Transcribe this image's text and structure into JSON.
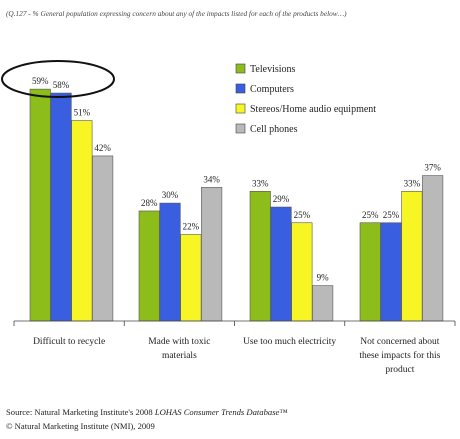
{
  "chart_data": {
    "type": "bar",
    "title": "(Q.127 - % General population expressing concern about any of the impacts listed for each of the products below…)",
    "categories": [
      [
        "Difficult to recycle"
      ],
      [
        "Made with toxic",
        "materials"
      ],
      [
        "Use too much electricity"
      ],
      [
        "Not concerned about",
        "these impacts for this",
        "product"
      ]
    ],
    "series": [
      {
        "name": "Televisions",
        "color": "#8cbd1a",
        "values": [
          59,
          28,
          33,
          25
        ]
      },
      {
        "name": "Computers",
        "color": "#3a5ee0",
        "values": [
          58,
          30,
          29,
          25
        ]
      },
      {
        "name": "Stereos/Home audio equipment",
        "color": "#f8f524",
        "values": [
          51,
          22,
          25,
          33
        ]
      },
      {
        "name": "Cell phones",
        "color": "#b9b9b9",
        "values": [
          42,
          34,
          9,
          37
        ]
      }
    ],
    "value_suffix": "%",
    "ylim": [
      0,
      60
    ],
    "grid": false,
    "legend": "top-right",
    "highlight": {
      "category": 0,
      "series": [
        0,
        1
      ],
      "shape": "ellipse"
    },
    "xlabel": "",
    "ylabel": ""
  },
  "footer": {
    "source_prefix": "Source: Natural Marketing Institute's 2008 ",
    "source_italic": "LOHAS Consumer Trends Database",
    "source_suffix": "™",
    "copyright": "© Natural Marketing Institute (NMI), 2009"
  }
}
